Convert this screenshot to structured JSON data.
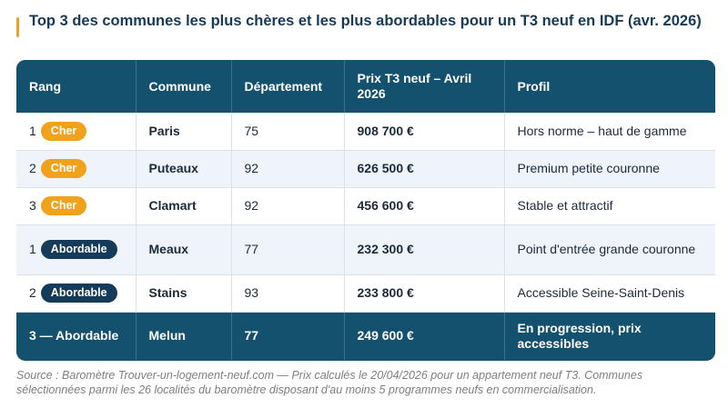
{
  "title": "Top 3 des communes les plus chères et les plus abordables pour un T3 neuf en IDF (avr. 2026)",
  "colors": {
    "accent": "#f0a21c",
    "header_bg": "#14516f",
    "badge_cher": "#f0a21c",
    "badge_abordable": "#163a5a"
  },
  "table": {
    "headers": {
      "rang": "Rang",
      "commune": "Commune",
      "departement": "Département",
      "prix": "Prix T3 neuf – Avril 2026",
      "profil": "Profil"
    },
    "rows": [
      {
        "rank": "1",
        "badge": "Cher",
        "commune": "Paris",
        "departement": "75",
        "prix": "908 700 €",
        "profil": "Hors norme – haut de gamme"
      },
      {
        "rank": "2",
        "badge": "Cher",
        "commune": "Puteaux",
        "departement": "92",
        "prix": "626 500 €",
        "profil": "Premium petite couronne"
      },
      {
        "rank": "3",
        "badge": "Cher",
        "commune": "Clamart",
        "departement": "92",
        "prix": "456 600 €",
        "profil": "Stable et attractif"
      },
      {
        "rank": "1",
        "badge": "Abordable",
        "commune": "Meaux",
        "departement": "77",
        "prix": "232 300 €",
        "profil": "Point d'entrée grande couronne"
      },
      {
        "rank": "2",
        "badge": "Abordable",
        "commune": "Stains",
        "departement": "93",
        "prix": "233 800 €",
        "profil": "Accessible Seine-Saint-Denis"
      }
    ],
    "last_row": {
      "rang": "3 — Abordable",
      "commune": "Melun",
      "departement": "77",
      "prix": "249 600 €",
      "profil": "En progression, prix accessibles"
    }
  },
  "source": "Source : Baromètre Trouver-un-logement-neuf.com — Prix calculés le 20/04/2026 pour un appartement neuf T3. Communes sélectionnées parmi les 26 localités du baromètre disposant d'au moins 5 programmes neufs en commercialisation."
}
